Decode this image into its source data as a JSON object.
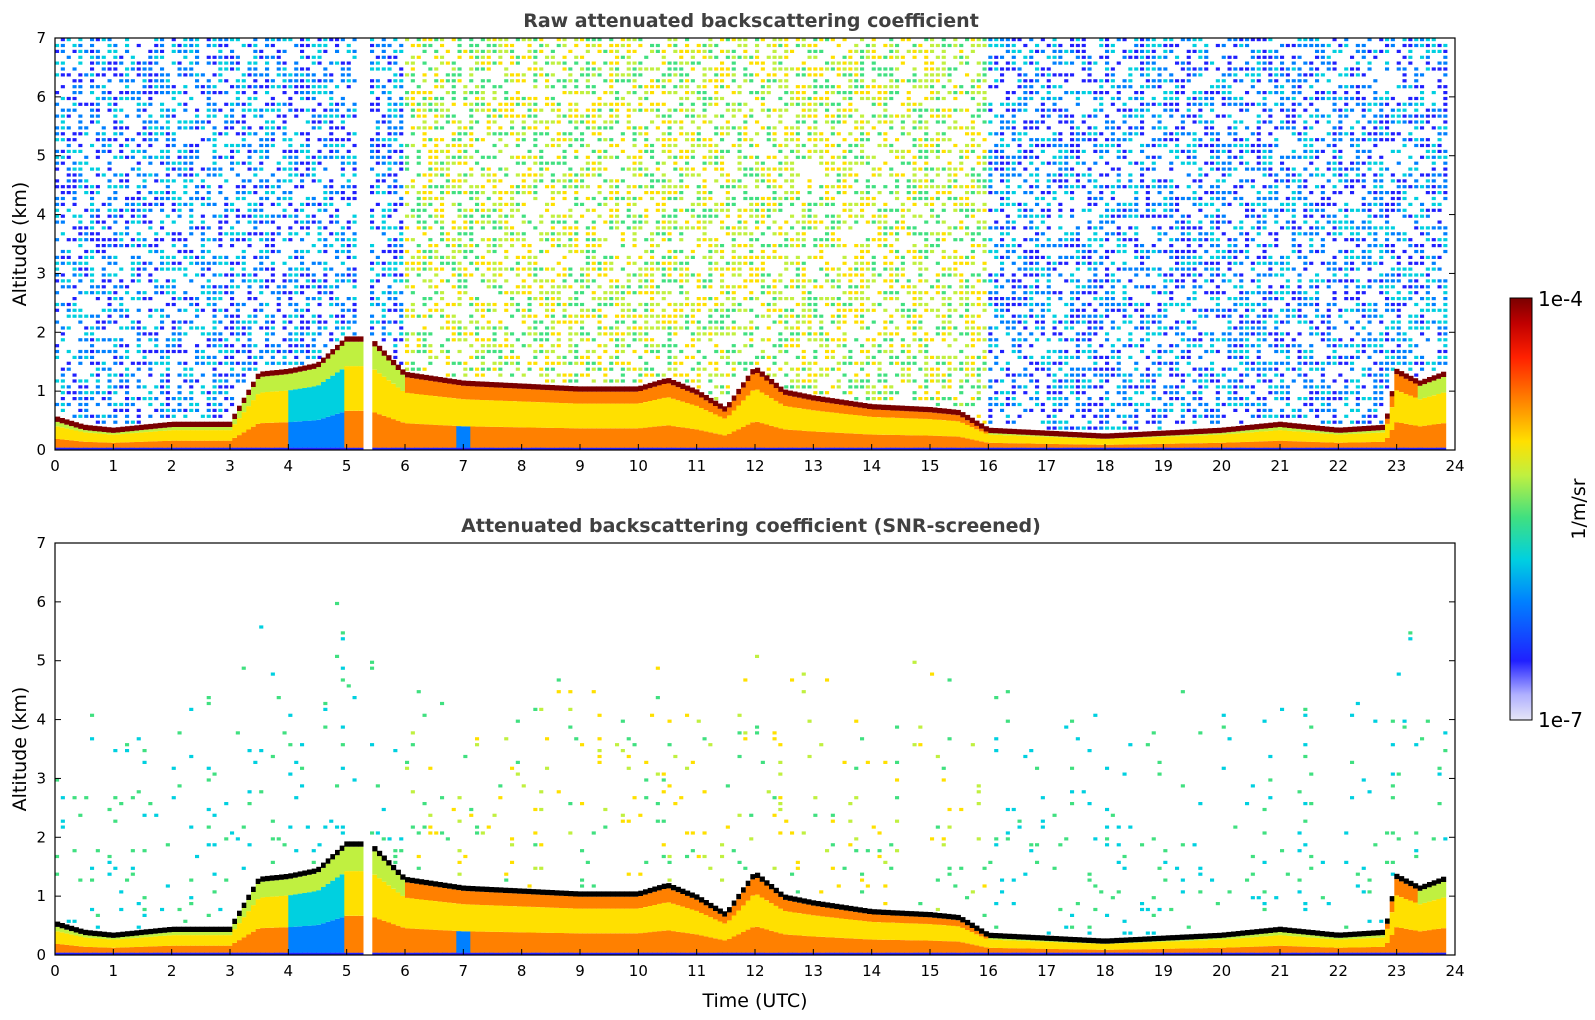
{
  "chart_data": [
    {
      "type": "heatmap",
      "title": "Raw attenuated backscattering coefficient",
      "xlabel": "",
      "ylabel": "Altitude (km)",
      "xlim": [
        0,
        24
      ],
      "ylim": [
        0,
        7
      ],
      "xticks": [
        0,
        1,
        2,
        3,
        4,
        5,
        6,
        7,
        8,
        9,
        10,
        11,
        12,
        13,
        14,
        15,
        16,
        17,
        18,
        19,
        20,
        21,
        22,
        23,
        24
      ],
      "yticks": [
        0,
        1,
        2,
        3,
        4,
        5,
        6,
        7
      ],
      "noise_density": 0.62,
      "description_layers": "boundary layer height varies in time",
      "boundary_layer_km": [
        {
          "t": 0,
          "h": 0.55
        },
        {
          "t": 0.5,
          "h": 0.4
        },
        {
          "t": 1,
          "h": 0.35
        },
        {
          "t": 1.5,
          "h": 0.4
        },
        {
          "t": 2,
          "h": 0.45
        },
        {
          "t": 2.5,
          "h": 0.45
        },
        {
          "t": 3,
          "h": 0.45
        },
        {
          "t": 3.5,
          "h": 1.3
        },
        {
          "t": 4,
          "h": 1.35
        },
        {
          "t": 4.5,
          "h": 1.45
        },
        {
          "t": 5,
          "h": 1.9
        },
        {
          "t": 5.4,
          "h": 1.9
        },
        {
          "t": 6,
          "h": 1.3
        },
        {
          "t": 7,
          "h": 1.15
        },
        {
          "t": 8,
          "h": 1.1
        },
        {
          "t": 9,
          "h": 1.05
        },
        {
          "t": 10,
          "h": 1.05
        },
        {
          "t": 10.5,
          "h": 1.2
        },
        {
          "t": 11,
          "h": 1.0
        },
        {
          "t": 11.5,
          "h": 0.7
        },
        {
          "t": 12,
          "h": 1.4
        },
        {
          "t": 12.5,
          "h": 1.0
        },
        {
          "t": 13,
          "h": 0.9
        },
        {
          "t": 14,
          "h": 0.75
        },
        {
          "t": 15,
          "h": 0.7
        },
        {
          "t": 15.5,
          "h": 0.65
        },
        {
          "t": 16,
          "h": 0.35
        },
        {
          "t": 17,
          "h": 0.3
        },
        {
          "t": 18,
          "h": 0.25
        },
        {
          "t": 19,
          "h": 0.3
        },
        {
          "t": 20,
          "h": 0.35
        },
        {
          "t": 21,
          "h": 0.45
        },
        {
          "t": 22,
          "h": 0.35
        },
        {
          "t": 22.8,
          "h": 0.4
        },
        {
          "t": 23,
          "h": 1.35
        },
        {
          "t": 23.4,
          "h": 1.15
        },
        {
          "t": 23.8,
          "h": 1.3
        }
      ],
      "gaps": [
        [
          5.25,
          5.4
        ]
      ]
    },
    {
      "type": "heatmap",
      "title": "Attenuated backscattering coefficient (SNR-screened)",
      "xlabel": "Time (UTC)",
      "ylabel": "Altitude (km)",
      "xlim": [
        0,
        24
      ],
      "ylim": [
        0,
        7
      ],
      "xticks": [
        0,
        1,
        2,
        3,
        4,
        5,
        6,
        7,
        8,
        9,
        10,
        11,
        12,
        13,
        14,
        15,
        16,
        17,
        18,
        19,
        20,
        21,
        22,
        23,
        24
      ],
      "yticks": [
        0,
        1,
        2,
        3,
        4,
        5,
        6,
        7
      ],
      "noise_density": 0.12,
      "gaps": [
        [
          5.25,
          5.4
        ]
      ]
    }
  ],
  "colorbar": {
    "label": "1/m/sr",
    "max_label": "1e-4",
    "min_label": "1e-7",
    "scale": "log",
    "range": [
      1e-07,
      0.0001
    ],
    "colors": [
      "#e6e6f7",
      "#b0b0ff",
      "#2020ff",
      "#0080ff",
      "#00d0e0",
      "#40e080",
      "#c0f040",
      "#ffe000",
      "#ff8000",
      "#ff2000",
      "#c00000",
      "#7a0000"
    ]
  }
}
